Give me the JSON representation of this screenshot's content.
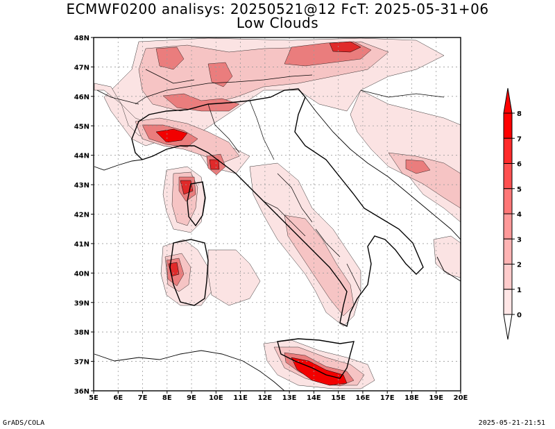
{
  "title_line1": "ECMWF0200 analisys: 20250521@12 FcT: 2025-05-31+06",
  "title_line2": "Low Clouds",
  "footer_left": "GrADS/COLA",
  "footer_right": "2025-05-21-21:51",
  "map": {
    "lon_ticks": [
      "5E",
      "6E",
      "7E",
      "8E",
      "9E",
      "10E",
      "11E",
      "12E",
      "13E",
      "14E",
      "15E",
      "16E",
      "17E",
      "18E",
      "19E",
      "20E"
    ],
    "lat_ticks": [
      "48N",
      "47N",
      "46N",
      "45N",
      "44N",
      "43N",
      "42N",
      "41N",
      "40N",
      "39N",
      "38N",
      "37N",
      "36N"
    ]
  },
  "colorbar": {
    "labels": [
      "8",
      "7",
      "6",
      "5",
      "4",
      "3",
      "2",
      "1",
      "0"
    ],
    "colors": [
      "#ff0000",
      "#ff2a2a",
      "#ff5050",
      "#ff7777",
      "#ff9999",
      "#ffb4b4",
      "#ffcccc",
      "#ffe6e6"
    ]
  },
  "palette": {
    "c1": "#fbe3e3",
    "c2": "#f6c4c4",
    "c3": "#f0a3a3",
    "c4": "#ea7d7d",
    "c5": "#e45252",
    "c6": "#e02a2a",
    "c7": "#f20000"
  }
}
